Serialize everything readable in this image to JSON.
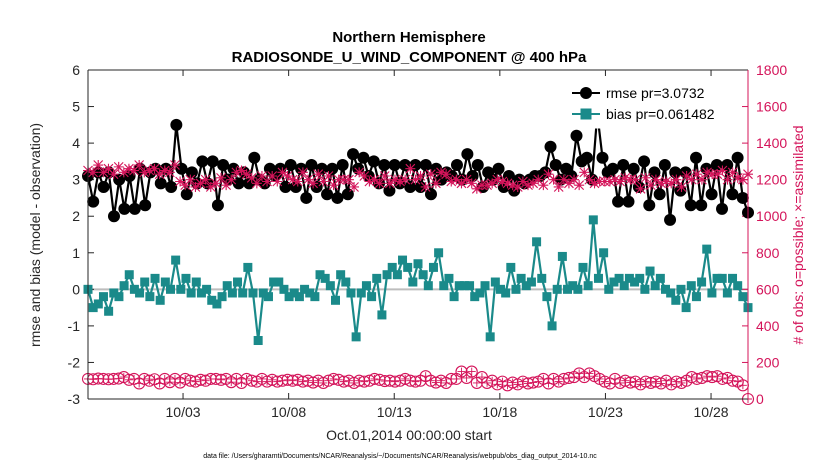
{
  "chart_data": {
    "type": "line",
    "title": "Northern Hemisphere",
    "subtitle": "RADIOSONDE_U_WIND_COMPONENT @ 400 hPa",
    "xlabel": "Oct.01,2014 00:00:00 start",
    "ylabel": "rmse and bias (model - observation)",
    "ylabel_right": "# of obs: o=possible; ×=assimilated",
    "footnote": "data file: /Users/gharamti/Documents/NCAR/Reanalysis/~/Documents/NCAR/Reanalysis/webpub/obs_diag_output_2014-10.nc",
    "xlim": [
      0,
      125
    ],
    "ylim": [
      -3,
      6
    ],
    "ylim_right": [
      0,
      1800
    ],
    "x_ticks": [
      {
        "x": 18,
        "label": "10/03"
      },
      {
        "x": 38,
        "label": "10/08"
      },
      {
        "x": 58,
        "label": "10/13"
      },
      {
        "x": 78,
        "label": "10/18"
      },
      {
        "x": 98,
        "label": "10/23"
      },
      {
        "x": 118,
        "label": "10/28"
      }
    ],
    "y_ticks": [
      {
        "v": -3,
        "label": "-3"
      },
      {
        "v": -2,
        "label": "-2"
      },
      {
        "v": -1,
        "label": "-1"
      },
      {
        "v": 0,
        "label": "0"
      },
      {
        "v": 1,
        "label": "1"
      },
      {
        "v": 2,
        "label": "2"
      },
      {
        "v": 3,
        "label": "3"
      },
      {
        "v": 4,
        "label": "4"
      },
      {
        "v": 5,
        "label": "5"
      },
      {
        "v": 6,
        "label": "6"
      }
    ],
    "y_ticks_right": [
      {
        "v": 0,
        "label": "0"
      },
      {
        "v": 200,
        "label": "200"
      },
      {
        "v": 400,
        "label": "400"
      },
      {
        "v": 600,
        "label": "600"
      },
      {
        "v": 800,
        "label": "800"
      },
      {
        "v": 1000,
        "label": "1000"
      },
      {
        "v": 1200,
        "label": "1200"
      },
      {
        "v": 1400,
        "label": "1400"
      },
      {
        "v": 1600,
        "label": "1600"
      },
      {
        "v": 1800,
        "label": "1800"
      }
    ],
    "zero_line": 0,
    "series": [
      {
        "name": "rmse",
        "legend": "rmse pr=3.0732",
        "color": "#000000",
        "marker": "circle",
        "axis": "left",
        "values": [
          3.1,
          2.4,
          3.2,
          2.8,
          3.2,
          2.0,
          3.0,
          2.2,
          3.1,
          2.2,
          3.3,
          2.3,
          3.2,
          3.3,
          2.9,
          3.3,
          2.8,
          4.5,
          3.3,
          2.6,
          3.2,
          2.9,
          3.5,
          2.9,
          3.5,
          2.3,
          3.4,
          3.0,
          3.3,
          2.9,
          3.2,
          2.9,
          3.6,
          3.0,
          2.9,
          3.3,
          3.1,
          3.3,
          2.8,
          3.4,
          2.8,
          3.3,
          2.5,
          3.4,
          2.8,
          3.3,
          2.6,
          3.3,
          2.5,
          3.4,
          2.6,
          3.7,
          3.3,
          3.6,
          3.1,
          3.5,
          2.9,
          3.4,
          2.7,
          3.4,
          2.9,
          3.4,
          2.8,
          3.4,
          2.8,
          3.4,
          2.6,
          3.3,
          3.0,
          3.2,
          3.1,
          3.4,
          3.0,
          3.7,
          3.1,
          3.4,
          2.8,
          3.2,
          3.0,
          3.3,
          2.8,
          3.1,
          2.7,
          3.0,
          2.9,
          3.0,
          3.1,
          3.1,
          3.2,
          3.9,
          3.4,
          3.0,
          3.3,
          3.1,
          4.2,
          3.5,
          3.6,
          3.0,
          4.8,
          3.6,
          3.2,
          3.3,
          2.4,
          3.4,
          2.4,
          3.3,
          2.8,
          3.5,
          2.3,
          3.2,
          2.6,
          3.4,
          1.9,
          3.2,
          2.7,
          3.2,
          2.3,
          3.6,
          2.3,
          3.3,
          2.6,
          3.4,
          2.2,
          3.4,
          2.6,
          3.6,
          2.5,
          2.1
        ]
      },
      {
        "name": "bias",
        "legend": "bias pr=0.061482",
        "color": "#1a8a8a",
        "marker": "square",
        "axis": "left",
        "values": [
          0.0,
          -0.5,
          -0.4,
          -0.2,
          -0.6,
          -0.1,
          -0.2,
          0.1,
          0.4,
          0.0,
          -0.1,
          0.2,
          -0.2,
          0.3,
          -0.3,
          0.2,
          0.0,
          0.8,
          0.0,
          0.3,
          -0.1,
          0.2,
          -0.1,
          0.0,
          -0.3,
          -0.4,
          -0.2,
          0.1,
          -0.1,
          0.2,
          -0.1,
          0.6,
          -0.1,
          -1.4,
          -0.1,
          -0.2,
          0.2,
          0.2,
          0.0,
          -0.2,
          -0.1,
          -0.2,
          0.0,
          -0.1,
          -0.2,
          0.4,
          0.3,
          0.1,
          -0.3,
          0.4,
          0.2,
          -0.1,
          -1.3,
          -0.1,
          0.1,
          -0.2,
          0.3,
          -0.7,
          0.4,
          0.6,
          0.4,
          0.8,
          0.6,
          0.2,
          0.7,
          0.4,
          0.1,
          0.6,
          1.0,
          0.1,
          0.3,
          -0.2,
          0.1,
          0.1,
          0.1,
          -0.2,
          -0.1,
          0.1,
          -1.3,
          0.2,
          0.0,
          -0.1,
          0.6,
          0.0,
          0.3,
          0.1,
          0.2,
          1.3,
          0.3,
          -0.2,
          -1.0,
          0.0,
          0.9,
          0.0,
          0.1,
          0.0,
          0.6,
          0.1,
          1.9,
          0.3,
          1.0,
          0.0,
          0.2,
          0.3,
          0.1,
          0.3,
          0.2,
          0.3,
          0.0,
          0.5,
          0.1,
          0.3,
          0.0,
          -0.1,
          -0.3,
          0.0,
          -0.5,
          0.1,
          -0.2,
          0.2,
          1.1,
          -0.1,
          0.3,
          0.3,
          -0.1,
          0.3,
          0.1,
          -0.2,
          -0.5
        ]
      },
      {
        "name": "# of obs possible",
        "color": "#d4145a",
        "marker": "circle-open",
        "axis": "right",
        "values": [
          110,
          108,
          112,
          110,
          108,
          110,
          112,
          120,
          105,
          110,
          85,
          110,
          100,
          108,
          85,
          110,
          92,
          110,
          90,
          110,
          100,
          95,
          105,
          100,
          110,
          110,
          105,
          110,
          92,
          110,
          88,
          110,
          100,
          95,
          110,
          95,
          105,
          95,
          100,
          105,
          100,
          105,
          95,
          100,
          90,
          100,
          88,
          100,
          110,
          105,
          95,
          100,
          88,
          100,
          95,
          100,
          110,
          105,
          98,
          100,
          95,
          100,
          110,
          100,
          95,
          100,
          125,
          100,
          90,
          100,
          88,
          110,
          110,
          150,
          115,
          150,
          88,
          120,
          88,
          100,
          80,
          95,
          75,
          90,
          80,
          95,
          85,
          90,
          95,
          110,
          85,
          110,
          95,
          110,
          115,
          120,
          140,
          120,
          140,
          125,
          110,
          95,
          85,
          110,
          88,
          100,
          90,
          95,
          80,
          95,
          88,
          95,
          85,
          100,
          80,
          95,
          88,
          100,
          120,
          110,
          115,
          125,
          120,
          125,
          110,
          115,
          100,
          95,
          75,
          0
        ]
      },
      {
        "name": "# of obs assimilated",
        "color": "#d4145a",
        "marker": "x",
        "axis": "right",
        "values": [
          1250,
          1240,
          1280,
          1240,
          1260,
          1230,
          1270,
          1240,
          1260,
          1250,
          1280,
          1240,
          1250,
          1260,
          1230,
          1250,
          1240,
          1280,
          1190,
          1170,
          1200,
          1160,
          1180,
          1200,
          1160,
          1180,
          1210,
          1170,
          1200,
          1240,
          1250,
          1230,
          1210,
          1180,
          1220,
          1190,
          1220,
          1190,
          1240,
          1220,
          1200,
          1190,
          1240,
          1200,
          1180,
          1230,
          1190,
          1220,
          1170,
          1200,
          1200,
          1200,
          1160,
          1240,
          1220,
          1190,
          1200,
          1180,
          1220,
          1180,
          1200,
          1190,
          1200,
          1260,
          1200,
          1220,
          1160,
          1230,
          1180,
          1240,
          1230,
          1190,
          1200,
          1180,
          1200,
          1180,
          1150,
          1170,
          1170,
          1180,
          1200,
          1190,
          1180,
          1170,
          1160,
          1190,
          1170,
          1180,
          1200,
          1170,
          1230,
          1200,
          1160,
          1200,
          1180,
          1200,
          1170,
          1240,
          1200,
          1180,
          1190,
          1190,
          1190,
          1200,
          1190,
          1210,
          1200,
          1200,
          1150,
          1210,
          1170,
          1200,
          1180,
          1190,
          1180,
          1200,
          1160,
          1220,
          1200,
          1230,
          1200,
          1240,
          1230,
          1230,
          1250,
          1200,
          1240,
          1210,
          1200,
          1230
        ]
      }
    ],
    "legend_position": "top-right"
  }
}
